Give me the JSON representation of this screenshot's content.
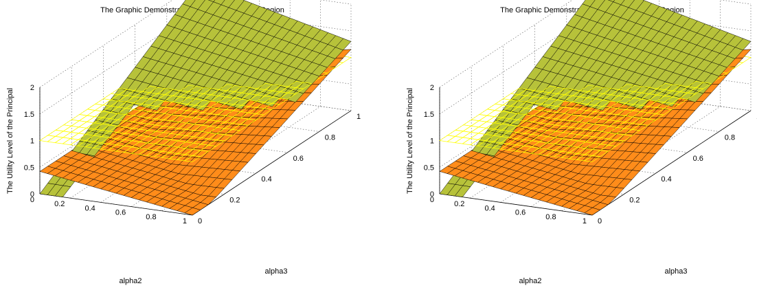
{
  "chart_data": [
    {
      "type": "surface3d",
      "title": "The Graphic Demonstration of Optimal Division Region",
      "xlabel": "alpha2",
      "ylabel": "alpha3",
      "zlabel": "The Utility Level of the Principal",
      "x_ticks": [
        "0",
        "0.2",
        "0.4",
        "0.6",
        "0.8",
        "1"
      ],
      "y_ticks": [
        "0",
        "0.2",
        "0.4",
        "0.6",
        "0.8",
        "1"
      ],
      "z_ticks": [
        "0",
        "0.5",
        "1",
        "1.5",
        "2"
      ],
      "xlim": [
        0,
        1
      ],
      "ylim": [
        0,
        1
      ],
      "zlim": [
        0,
        2
      ],
      "grid": true,
      "grid_n": 20,
      "surfaces": [
        {
          "id": "flat",
          "formula": "z = 1",
          "color": "#ffff00",
          "style": "mesh",
          "note": "constant plane at 1"
        },
        {
          "id": "incline",
          "formula": "z = 2*alpha3*(1 - 0.35*alpha2)",
          "color": "#2a3a00",
          "style": "dark-green faceted",
          "visible_region": "z >= flat"
        },
        {
          "id": "valley",
          "formula": "z = |0.4 - alpha2*0.4 ... | (piecewise)",
          "color": "#ff8c00",
          "style": "orange faceted",
          "visible_region": "above flat or in front"
        }
      ]
    },
    {
      "type": "surface3d",
      "title": "The Graphic Demonstration of Optimal Division Region",
      "xlabel": "alpha2",
      "ylabel": "alpha3",
      "zlabel": "The Utility Level of the Principal",
      "x_ticks": [
        "0",
        "0.2",
        "0.4",
        "0.6",
        "0.8",
        "1"
      ],
      "y_ticks": [
        "0",
        "0.2",
        "0.4",
        "0.6",
        "0.8",
        "1"
      ],
      "z_ticks": [
        "0",
        "0.5",
        "1",
        "1.5",
        "2"
      ],
      "xlim": [
        0,
        1
      ],
      "ylim": [
        0,
        1
      ],
      "zlim": [
        0,
        2
      ],
      "grid": true,
      "grid_n": 20,
      "surfaces": [
        {
          "id": "flat",
          "formula": "z = 1",
          "color": "#ffff00",
          "style": "mesh"
        },
        {
          "id": "incline",
          "formula": "z = 2*alpha3*(1 - 0.35*alpha2)",
          "color": "#2a3a00",
          "style": "dark-green faceted"
        },
        {
          "id": "valley",
          "formula": "piecewise orange surface",
          "color": "#ff8c00",
          "style": "orange faceted"
        }
      ]
    }
  ]
}
